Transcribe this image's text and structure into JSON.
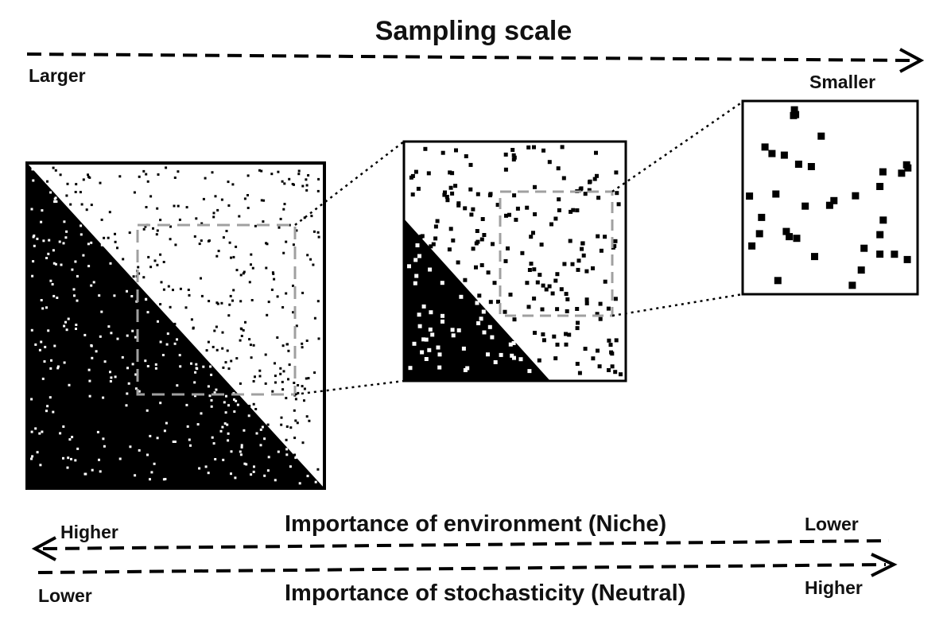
{
  "title": "Sampling scale",
  "sampling_scale": {
    "start_label": "Larger",
    "end_label": "Smaller"
  },
  "environment": {
    "title": "Importance of environment (Niche)",
    "left_label": "Higher",
    "right_label": "Lower"
  },
  "stochasticity": {
    "title": "Importance of stochasticity (Neutral)",
    "left_label": "Lower",
    "right_label": "Higher"
  },
  "colors": {
    "ink": "#000000",
    "background": "#ffffff",
    "zoom_box": "#a0a0a0"
  }
}
